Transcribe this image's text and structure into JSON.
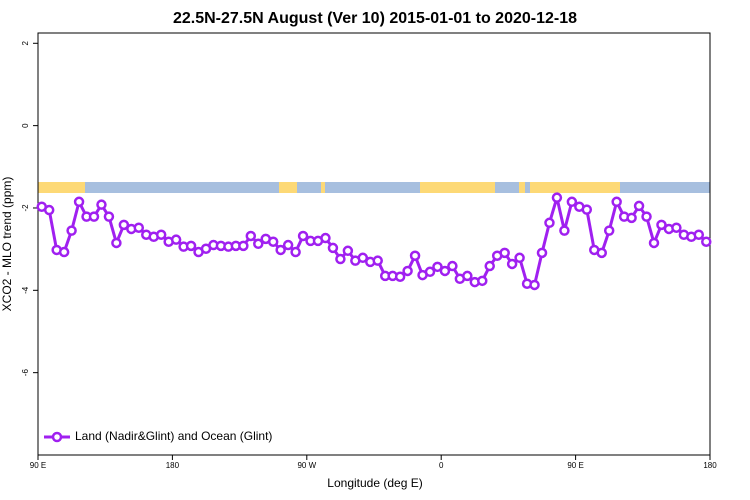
{
  "chart_data": {
    "type": "line",
    "title": "22.5N-27.5N August (Ver 10)   2015-01-01 to 2020-12-18",
    "xlabel": "Longitude (deg E)",
    "ylabel": "XCO2 - MLO trend (ppm)",
    "xlim": [
      90,
      540
    ],
    "ylim": [
      -8,
      2.25
    ],
    "xticks": [
      {
        "value": 90,
        "label": "90 E"
      },
      {
        "value": 180,
        "label": "180"
      },
      {
        "value": 270,
        "label": "90 W"
      },
      {
        "value": 360,
        "label": "0"
      },
      {
        "value": 450,
        "label": "90 E"
      },
      {
        "value": 540,
        "label": "180"
      }
    ],
    "yticks": [
      -6,
      -4,
      -2,
      0,
      2
    ],
    "legend": "bottomleft",
    "series": [
      {
        "name": "Land (Nadir&Glint) and Ocean (Glint)",
        "color": "#a020f0",
        "x": [
          92.5,
          97.5,
          102.5,
          107.5,
          112.5,
          117.5,
          122.5,
          127.5,
          132.5,
          137.5,
          142.5,
          147.5,
          152.5,
          157.5,
          162.5,
          167.5,
          172.5,
          177.5,
          182.5,
          187.5,
          192.5,
          197.5,
          202.5,
          207.5,
          212.5,
          217.5,
          222.5,
          227.5,
          232.5,
          237.5,
          242.5,
          247.5,
          252.5,
          257.5,
          262.5,
          267.5,
          272.5,
          277.5,
          282.5,
          287.5,
          292.5,
          297.5,
          302.5,
          307.5,
          312.5,
          317.5,
          322.5,
          327.5,
          332.5,
          337.5,
          342.5,
          347.5,
          352.5,
          357.5,
          362.5,
          367.5,
          372.5,
          377.5,
          382.5,
          387.5,
          392.5,
          397.5,
          402.5,
          407.5,
          412.5,
          417.5,
          422.5,
          427.5,
          432.5,
          437.5,
          442.5,
          447.5,
          452.5,
          457.5,
          462.5,
          467.5,
          472.5,
          477.5,
          482.5,
          487.5,
          492.5,
          497.5,
          502.5,
          507.5,
          512.5,
          517.5,
          522.5,
          527.5,
          532.5,
          537.5
        ],
        "values": [
          -1.97,
          -2.05,
          -3.02,
          -3.07,
          -2.55,
          -1.85,
          -2.21,
          -2.21,
          -1.92,
          -2.21,
          -2.85,
          -2.41,
          -2.51,
          -2.48,
          -2.65,
          -2.7,
          -2.65,
          -2.82,
          -2.77,
          -2.94,
          -2.92,
          -3.07,
          -2.99,
          -2.9,
          -2.92,
          -2.94,
          -2.92,
          -2.92,
          -2.68,
          -2.87,
          -2.75,
          -2.82,
          -3.02,
          -2.9,
          -3.07,
          -2.68,
          -2.8,
          -2.8,
          -2.73,
          -2.97,
          -3.24,
          -3.04,
          -3.28,
          -3.21,
          -3.31,
          -3.28,
          -3.65,
          -3.65,
          -3.67,
          -3.53,
          -3.16,
          -3.63,
          -3.55,
          -3.43,
          -3.53,
          -3.41,
          -3.72,
          -3.65,
          -3.8,
          -3.77,
          -3.41,
          -3.16,
          -3.09,
          -3.36,
          -3.21,
          -3.84,
          -3.87,
          -3.09,
          -2.36,
          -1.75,
          -2.55,
          -1.85,
          -1.97,
          -2.04,
          -3.02,
          -3.09,
          -2.55,
          -1.85,
          -2.21,
          -2.24,
          -1.95,
          -2.21,
          -2.85,
          -2.41,
          -2.51,
          -2.48,
          -2.65,
          -2.7,
          -2.65,
          -2.82
        ]
      }
    ]
  }
}
